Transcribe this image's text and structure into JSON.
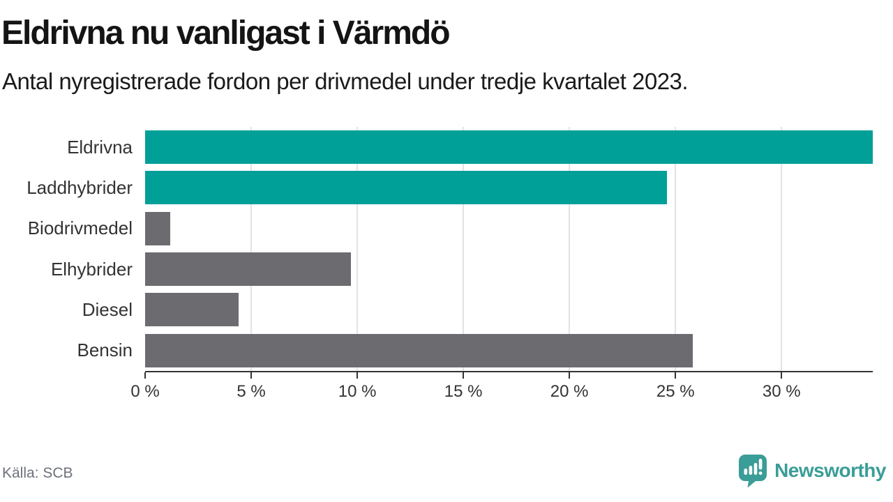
{
  "title": "Eldrivna nu vanligast i Värmdö",
  "subtitle": "Antal nyregistrerade fordon per drivmedel under tredje kvartalet 2023.",
  "source": "Källa: SCB",
  "brand": {
    "name": "Newsworthy"
  },
  "colors": {
    "highlight_bar": "#00a099",
    "default_bar": "#6c6c70",
    "grid": "#e3e3e3",
    "axis": "#333333",
    "brand_teal": "#3a9d97"
  },
  "chart_data": {
    "type": "bar",
    "orientation": "horizontal",
    "title": "Eldrivna nu vanligast i Värmdö",
    "subtitle": "Antal nyregistrerade fordon per drivmedel under tredje kvartalet 2023.",
    "categories": [
      "Eldrivna",
      "Laddhybrider",
      "Biodrivmedel",
      "Elhybrider",
      "Diesel",
      "Bensin"
    ],
    "values": [
      34.3,
      24.6,
      1.2,
      9.7,
      4.4,
      25.8
    ],
    "unit": "%",
    "highlighted_categories": [
      "Eldrivna",
      "Laddhybrider"
    ],
    "bar_colors": [
      "#00a099",
      "#00a099",
      "#6c6c70",
      "#6c6c70",
      "#6c6c70",
      "#6c6c70"
    ],
    "x_ticks": [
      "0 %",
      "5 %",
      "10 %",
      "15 %",
      "20 %",
      "25 %",
      "30 %"
    ],
    "x_tick_values": [
      0,
      5,
      10,
      15,
      20,
      25,
      30
    ],
    "xlim": [
      0,
      34.3
    ],
    "grid": true,
    "legend": false
  }
}
